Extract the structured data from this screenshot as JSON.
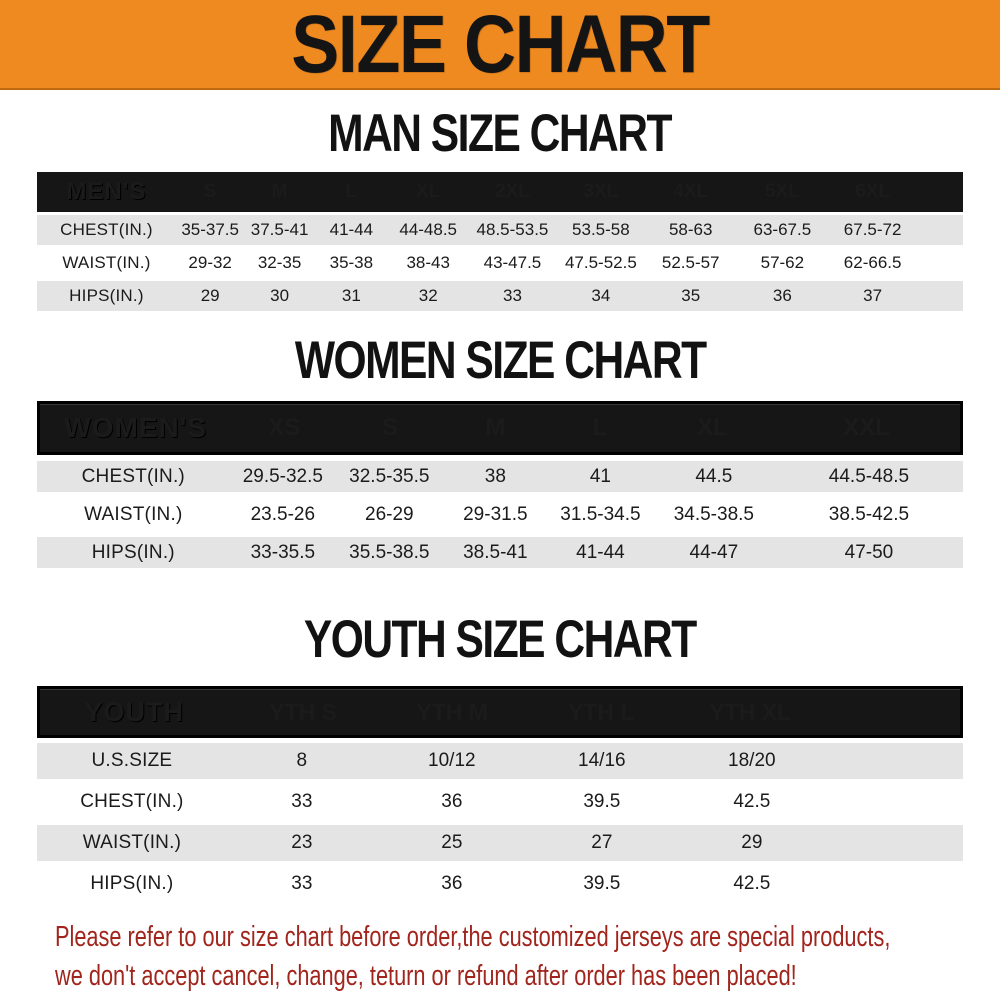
{
  "banner": {
    "title": "SIZE CHART"
  },
  "colors": {
    "banner_bg": "#EF8A21",
    "banner_border": "#C06A10",
    "header_bg": "#161616",
    "header_text": "#FFFFFF",
    "row_gray": "#E4E4E4",
    "cell_text": "#1B1B1B",
    "note_red": "#A1251D"
  },
  "sections": [
    {
      "id": "men",
      "title": "MAN SIZE CHART",
      "header_label": "MEN'S",
      "columns": [
        "S",
        "M",
        "L",
        "XL",
        "2XL",
        "3XL",
        "4XL",
        "5XL",
        "6XL"
      ],
      "rows": [
        {
          "label": "CHEST(IN.)",
          "values": [
            "35-37.5",
            "37.5-41",
            "41-44",
            "44-48.5",
            "48.5-53.5",
            "53.5-58",
            "58-63",
            "63-67.5",
            "67.5-72"
          ]
        },
        {
          "label": "WAIST(IN.)",
          "values": [
            "29-32",
            "32-35",
            "35-38",
            "38-43",
            "43-47.5",
            "47.5-52.5",
            "52.5-57",
            "57-62",
            "62-66.5"
          ]
        },
        {
          "label": "HIPS(IN.)",
          "values": [
            "29",
            "30",
            "31",
            "32",
            "33",
            "34",
            "35",
            "36",
            "37"
          ]
        }
      ]
    },
    {
      "id": "women",
      "title": "WOMEN SIZE CHART",
      "header_label": "WOMEN'S",
      "columns": [
        "XS",
        "S",
        "M",
        "L",
        "XL",
        "XXL"
      ],
      "rows": [
        {
          "label": "CHEST(IN.)",
          "values": [
            "29.5-32.5",
            "32.5-35.5",
            "38",
            "41",
            "44.5",
            "44.5-48.5"
          ]
        },
        {
          "label": "WAIST(IN.)",
          "values": [
            "23.5-26",
            "26-29",
            "29-31.5",
            "31.5-34.5",
            "34.5-38.5",
            "38.5-42.5"
          ]
        },
        {
          "label": "HIPS(IN.)",
          "values": [
            "33-35.5",
            "35.5-38.5",
            "38.5-41",
            "41-44",
            "44-47",
            "47-50"
          ]
        }
      ]
    },
    {
      "id": "youth",
      "title": "YOUTH SIZE CHART",
      "header_label": "YOUTH",
      "columns": [
        "YTH S",
        "YTH M",
        "YTH L",
        "YTH XL"
      ],
      "rows": [
        {
          "label": "U.S.SIZE",
          "values": [
            "8",
            "10/12",
            "14/16",
            "18/20"
          ]
        },
        {
          "label": "CHEST(IN.)",
          "values": [
            "33",
            "36",
            "39.5",
            "42.5"
          ]
        },
        {
          "label": "WAIST(IN.)",
          "values": [
            "23",
            "25",
            "27",
            "29"
          ]
        },
        {
          "label": "HIPS(IN.)",
          "values": [
            "33",
            "36",
            "39.5",
            "42.5"
          ]
        }
      ]
    }
  ],
  "footer_note": {
    "lines": [
      "Please refer to our size chart before order,the customized jerseys are special products,",
      "we don't accept cancel, change, teturn or refund after order has been placed!"
    ]
  }
}
